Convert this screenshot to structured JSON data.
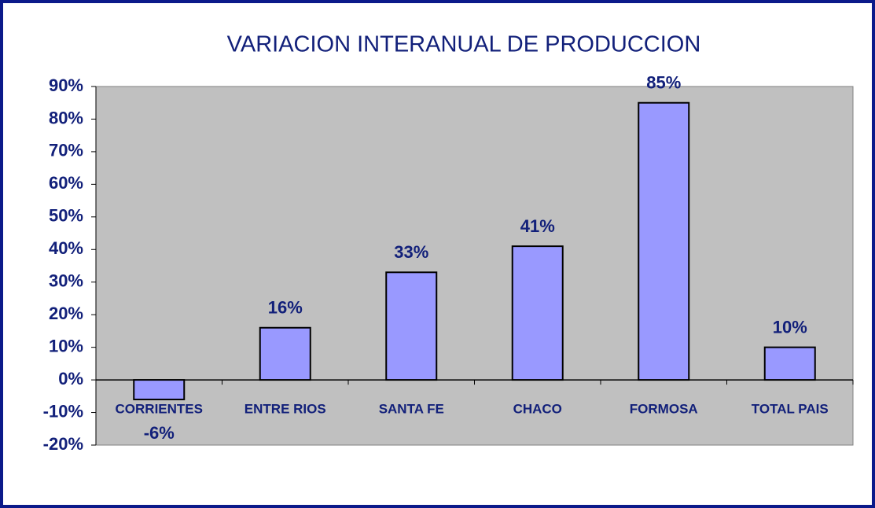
{
  "chart_data": {
    "type": "bar",
    "title": "VARIACION INTERANUAL DE PRODUCCION",
    "categories": [
      "CORRIENTES",
      "ENTRE RIOS",
      "SANTA FE",
      "CHACO",
      "FORMOSA",
      "TOTAL PAIS"
    ],
    "values": [
      -6,
      16,
      33,
      41,
      85,
      10
    ],
    "value_labels": [
      "-6%",
      "16%",
      "33%",
      "41%",
      "85%",
      "10%"
    ],
    "color": "#9999ff",
    "ylim": [
      -20,
      90
    ],
    "yticks": [
      {
        "value": -20,
        "label": "-20%"
      },
      {
        "value": -10,
        "label": "-10%"
      },
      {
        "value": 0,
        "label": "0%"
      },
      {
        "value": 10,
        "label": "10%"
      },
      {
        "value": 20,
        "label": "20%"
      },
      {
        "value": 30,
        "label": "30%"
      },
      {
        "value": 40,
        "label": "40%"
      },
      {
        "value": 50,
        "label": "50%"
      },
      {
        "value": 60,
        "label": "60%"
      },
      {
        "value": 70,
        "label": "70%"
      },
      {
        "value": 80,
        "label": "80%"
      },
      {
        "value": 90,
        "label": "90%"
      }
    ],
    "grid": false
  }
}
